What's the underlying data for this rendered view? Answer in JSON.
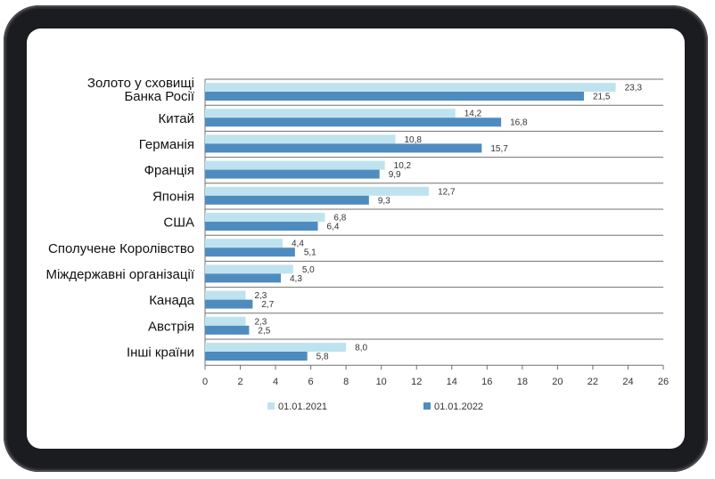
{
  "chart_data": {
    "type": "bar",
    "orientation": "horizontal",
    "categories": [
      "Золото у сховищі Банка Росії",
      "Китай",
      "Германія",
      "Франція",
      "Японія",
      "США",
      "Сполучене Королівство",
      "Міждержавні організації",
      "Канада",
      "Австрія",
      "Інші країни"
    ],
    "category_lines": [
      [
        "Золото у сховищі",
        "Банка Росії"
      ],
      [
        "Китай"
      ],
      [
        "Германія"
      ],
      [
        "Франція"
      ],
      [
        "Японія"
      ],
      [
        "США"
      ],
      [
        "Сполучене Королівство"
      ],
      [
        "Міждержавні організації"
      ],
      [
        "Канада"
      ],
      [
        "Австрія"
      ],
      [
        "Інші країни"
      ]
    ],
    "series": [
      {
        "name": "01.01.2021",
        "color": "#bfe3ee",
        "values": [
          23.3,
          14.2,
          10.8,
          10.2,
          12.7,
          6.8,
          4.4,
          5.0,
          2.3,
          2.3,
          8.0
        ],
        "labels": [
          "23,3",
          "14,2",
          "10,8",
          "10,2",
          "12,7",
          "6,8",
          "4,4",
          "5,0",
          "2,3",
          "2,3",
          "8,0"
        ]
      },
      {
        "name": "01.01.2022",
        "color": "#4e8cc0",
        "values": [
          21.5,
          16.8,
          15.7,
          9.9,
          9.3,
          6.4,
          5.1,
          4.3,
          2.7,
          2.5,
          5.8
        ],
        "labels": [
          "21,5",
          "16,8",
          "15,7",
          "9,9",
          "9,3",
          "6,4",
          "5,1",
          "4,3",
          "2,7",
          "2,5",
          "5,8"
        ]
      }
    ],
    "xlim": [
      0,
      26
    ],
    "xticks": [
      0,
      2,
      4,
      6,
      8,
      10,
      12,
      14,
      16,
      18,
      20,
      22,
      24,
      26
    ],
    "grid": "category separators",
    "legend": "bottom"
  }
}
